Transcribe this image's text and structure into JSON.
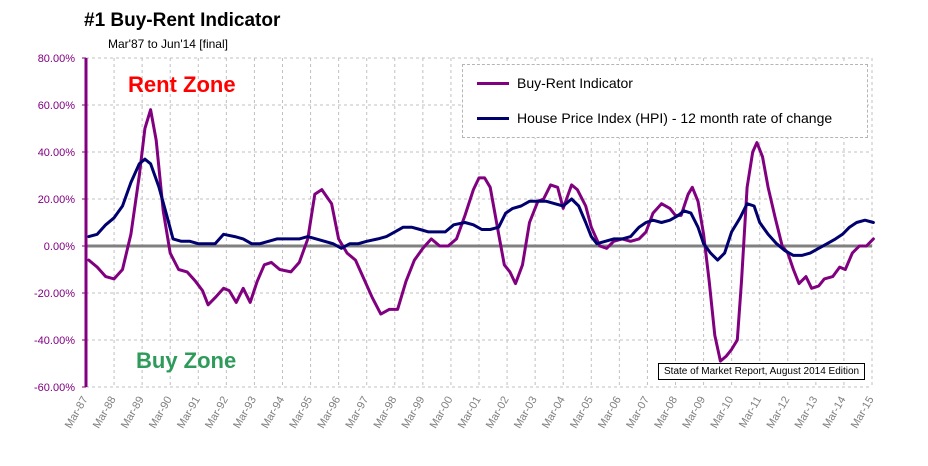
{
  "title": "#1 Buy-Rent Indicator",
  "subtitle": "Mar'87 to Jun'14 [final]",
  "zones": {
    "rent": "Rent Zone",
    "buy": "Buy Zone"
  },
  "source_note": "State of Market Report, August 2014 Edition",
  "colors": {
    "buy_rent": "#800080",
    "hpi": "#00006e",
    "rent_zone": "#ff0000",
    "buy_zone": "#2e9b5b",
    "axis": "#800080",
    "zero_line": "#808080"
  },
  "chart_data": {
    "type": "line",
    "title": "#1 Buy-Rent Indicator",
    "subtitle": "Mar'87 to Jun'14 [final]",
    "ylim": [
      -60,
      80
    ],
    "y_ticks": [
      "-60.00%",
      "-40.00%",
      "-20.00%",
      "0.00%",
      "20.00%",
      "40.00%",
      "60.00%",
      "80.00%"
    ],
    "xlim": [
      1987.0,
      2015.0
    ],
    "x_ticks": [
      "Mar-87",
      "Mar-88",
      "Mar-89",
      "Mar-90",
      "Mar-91",
      "Mar-92",
      "Mar-93",
      "Mar-94",
      "Mar-95",
      "Mar-96",
      "Mar-97",
      "Mar-98",
      "Mar-99",
      "Mar-00",
      "Mar-01",
      "Mar-02",
      "Mar-03",
      "Mar-04",
      "Mar-05",
      "Mar-06",
      "Mar-07",
      "Mar-08",
      "Mar-09",
      "Mar-10",
      "Mar-11",
      "Mar-12",
      "Mar-13",
      "Mar-14",
      "Mar-15"
    ],
    "grid": true,
    "legend_position": "top-right",
    "series": [
      {
        "name": "Buy-Rent Indicator",
        "color": "#800080",
        "points": [
          [
            1987.1,
            -6
          ],
          [
            1987.4,
            -9
          ],
          [
            1987.7,
            -13
          ],
          [
            1988.0,
            -14
          ],
          [
            1988.3,
            -10
          ],
          [
            1988.6,
            5
          ],
          [
            1988.9,
            30
          ],
          [
            1989.1,
            50
          ],
          [
            1989.3,
            58
          ],
          [
            1989.5,
            45
          ],
          [
            1989.75,
            15
          ],
          [
            1990.0,
            -3
          ],
          [
            1990.3,
            -10
          ],
          [
            1990.6,
            -11
          ],
          [
            1990.9,
            -15
          ],
          [
            1991.15,
            -19
          ],
          [
            1991.35,
            -25
          ],
          [
            1991.6,
            -22
          ],
          [
            1991.9,
            -18
          ],
          [
            1992.1,
            -19
          ],
          [
            1992.35,
            -24
          ],
          [
            1992.6,
            -18
          ],
          [
            1992.85,
            -24
          ],
          [
            1993.1,
            -15
          ],
          [
            1993.35,
            -8
          ],
          [
            1993.6,
            -7
          ],
          [
            1993.9,
            -10
          ],
          [
            1994.3,
            -11
          ],
          [
            1994.6,
            -7
          ],
          [
            1994.9,
            3
          ],
          [
            1995.15,
            22
          ],
          [
            1995.4,
            24
          ],
          [
            1995.75,
            18
          ],
          [
            1996.0,
            3
          ],
          [
            1996.3,
            -3
          ],
          [
            1996.6,
            -6
          ],
          [
            1996.9,
            -14
          ],
          [
            1997.2,
            -22
          ],
          [
            1997.5,
            -29
          ],
          [
            1997.8,
            -27
          ],
          [
            1998.1,
            -27
          ],
          [
            1998.4,
            -15
          ],
          [
            1998.7,
            -6
          ],
          [
            1999.0,
            -1
          ],
          [
            1999.3,
            3
          ],
          [
            1999.6,
            0
          ],
          [
            1999.9,
            0
          ],
          [
            2000.2,
            3
          ],
          [
            2000.5,
            13
          ],
          [
            2000.8,
            24
          ],
          [
            2001.0,
            29
          ],
          [
            2001.2,
            29
          ],
          [
            2001.4,
            25
          ],
          [
            2001.7,
            5
          ],
          [
            2001.9,
            -8
          ],
          [
            2002.1,
            -11
          ],
          [
            2002.3,
            -16
          ],
          [
            2002.55,
            -8
          ],
          [
            2002.8,
            10
          ],
          [
            2003.1,
            19
          ],
          [
            2003.3,
            20
          ],
          [
            2003.55,
            26
          ],
          [
            2003.8,
            25
          ],
          [
            2004.0,
            16
          ],
          [
            2004.3,
            26
          ],
          [
            2004.5,
            24
          ],
          [
            2004.8,
            17
          ],
          [
            2005.0,
            8
          ],
          [
            2005.3,
            0
          ],
          [
            2005.55,
            -1
          ],
          [
            2005.8,
            2
          ],
          [
            2006.1,
            3
          ],
          [
            2006.4,
            2
          ],
          [
            2006.7,
            3
          ],
          [
            2006.95,
            6
          ],
          [
            2007.2,
            14
          ],
          [
            2007.5,
            18
          ],
          [
            2007.8,
            16
          ],
          [
            2008.0,
            13
          ],
          [
            2008.2,
            13
          ],
          [
            2008.45,
            22
          ],
          [
            2008.6,
            25
          ],
          [
            2008.8,
            19
          ],
          [
            2009.0,
            5
          ],
          [
            2009.2,
            -15
          ],
          [
            2009.4,
            -38
          ],
          [
            2009.6,
            -49
          ],
          [
            2009.8,
            -47
          ],
          [
            2010.0,
            -44
          ],
          [
            2010.2,
            -40
          ],
          [
            2010.35,
            -15
          ],
          [
            2010.55,
            25
          ],
          [
            2010.75,
            40
          ],
          [
            2010.9,
            44
          ],
          [
            2011.1,
            38
          ],
          [
            2011.3,
            25
          ],
          [
            2011.55,
            12
          ],
          [
            2011.8,
            0
          ],
          [
            2012.0,
            -3
          ],
          [
            2012.2,
            -10
          ],
          [
            2012.4,
            -16
          ],
          [
            2012.65,
            -13
          ],
          [
            2012.85,
            -18
          ],
          [
            2013.1,
            -17
          ],
          [
            2013.3,
            -14
          ],
          [
            2013.6,
            -13
          ],
          [
            2013.85,
            -9
          ],
          [
            2014.05,
            -10
          ],
          [
            2014.3,
            -3
          ],
          [
            2014.55,
            0
          ],
          [
            2014.8,
            0
          ],
          [
            2015.05,
            3
          ]
        ]
      },
      {
        "name": "House Price Index (HPI) - 12 month rate of change",
        "color": "#00006e",
        "points": [
          [
            1987.1,
            4
          ],
          [
            1987.4,
            5
          ],
          [
            1987.7,
            9
          ],
          [
            1988.0,
            12
          ],
          [
            1988.3,
            17
          ],
          [
            1988.6,
            27
          ],
          [
            1988.9,
            35
          ],
          [
            1989.1,
            37
          ],
          [
            1989.3,
            35
          ],
          [
            1989.6,
            25
          ],
          [
            1989.9,
            12
          ],
          [
            1990.1,
            3
          ],
          [
            1990.4,
            2
          ],
          [
            1990.7,
            2
          ],
          [
            1991.0,
            1
          ],
          [
            1991.3,
            1
          ],
          [
            1991.6,
            1
          ],
          [
            1991.9,
            5
          ],
          [
            1992.3,
            4
          ],
          [
            1992.6,
            3
          ],
          [
            1992.9,
            1
          ],
          [
            1993.2,
            1
          ],
          [
            1993.5,
            2
          ],
          [
            1993.8,
            3
          ],
          [
            1994.3,
            3
          ],
          [
            1994.6,
            3
          ],
          [
            1994.9,
            4
          ],
          [
            1995.2,
            3
          ],
          [
            1995.5,
            2
          ],
          [
            1995.8,
            1
          ],
          [
            1996.1,
            -1
          ],
          [
            1996.4,
            1
          ],
          [
            1996.7,
            1
          ],
          [
            1997.0,
            2
          ],
          [
            1997.4,
            3
          ],
          [
            1997.7,
            4
          ],
          [
            1998.0,
            6
          ],
          [
            1998.3,
            8
          ],
          [
            1998.6,
            8
          ],
          [
            1998.9,
            7
          ],
          [
            1999.2,
            6
          ],
          [
            1999.5,
            6
          ],
          [
            1999.8,
            6
          ],
          [
            2000.1,
            9
          ],
          [
            2000.5,
            10
          ],
          [
            2000.8,
            9
          ],
          [
            2001.1,
            7
          ],
          [
            2001.4,
            7
          ],
          [
            2001.7,
            8
          ],
          [
            2001.95,
            14
          ],
          [
            2002.2,
            16
          ],
          [
            2002.5,
            17
          ],
          [
            2002.8,
            19
          ],
          [
            2003.1,
            19
          ],
          [
            2003.4,
            19
          ],
          [
            2003.7,
            18
          ],
          [
            2004.0,
            17
          ],
          [
            2004.3,
            20
          ],
          [
            2004.55,
            17
          ],
          [
            2004.8,
            10
          ],
          [
            2005.0,
            4
          ],
          [
            2005.2,
            1
          ],
          [
            2005.5,
            2
          ],
          [
            2005.8,
            3
          ],
          [
            2006.1,
            3
          ],
          [
            2006.4,
            4
          ],
          [
            2006.7,
            8
          ],
          [
            2006.95,
            10
          ],
          [
            2007.2,
            11
          ],
          [
            2007.5,
            10
          ],
          [
            2007.8,
            11
          ],
          [
            2008.1,
            13
          ],
          [
            2008.3,
            15
          ],
          [
            2008.55,
            14
          ],
          [
            2008.8,
            8
          ],
          [
            2009.0,
            1
          ],
          [
            2009.25,
            -3
          ],
          [
            2009.5,
            -6
          ],
          [
            2009.75,
            -3
          ],
          [
            2010.0,
            6
          ],
          [
            2010.3,
            12
          ],
          [
            2010.55,
            18
          ],
          [
            2010.8,
            17
          ],
          [
            2011.0,
            10
          ],
          [
            2011.3,
            5
          ],
          [
            2011.6,
            1
          ],
          [
            2011.9,
            -2
          ],
          [
            2012.2,
            -4
          ],
          [
            2012.5,
            -4
          ],
          [
            2012.8,
            -3
          ],
          [
            2013.1,
            -1
          ],
          [
            2013.4,
            1
          ],
          [
            2013.7,
            3
          ],
          [
            2013.95,
            5
          ],
          [
            2014.2,
            8
          ],
          [
            2014.45,
            10
          ],
          [
            2014.75,
            11
          ],
          [
            2015.05,
            10
          ]
        ]
      }
    ]
  }
}
